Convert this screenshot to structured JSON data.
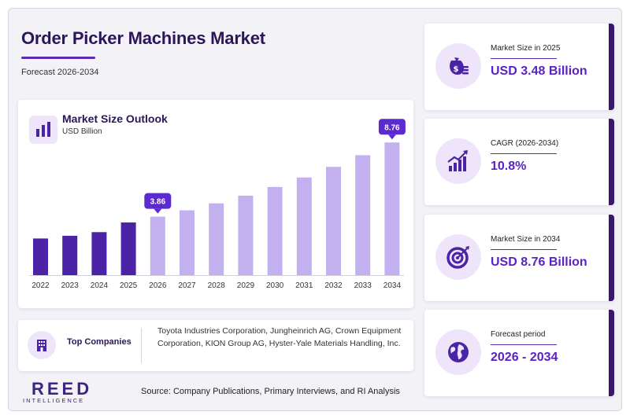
{
  "header": {
    "title": "Order Picker Machines Market",
    "subtitle": "Forecast 2026-2034"
  },
  "chart_data": {
    "type": "bar",
    "title": "Market Size Outlook",
    "unit_label": "USD Billion",
    "categories": [
      "2022",
      "2023",
      "2024",
      "2025",
      "2026",
      "2027",
      "2028",
      "2029",
      "2030",
      "2031",
      "2032",
      "2033",
      "2034"
    ],
    "values": [
      2.42,
      2.6,
      2.84,
      3.48,
      3.86,
      4.28,
      4.74,
      5.25,
      5.82,
      6.45,
      7.15,
      7.92,
      8.76
    ],
    "historical_color": "#4a23a6",
    "forecast_color": "#c2b1ee",
    "callout_color": "#5b2bcf",
    "labeled_points": [
      {
        "category": "2026",
        "label": "3.86"
      },
      {
        "category": "2034",
        "label": "8.76"
      }
    ],
    "ylim": [
      0,
      9.5
    ],
    "grid": false,
    "legend": "none"
  },
  "companies": {
    "label": "Top Companies",
    "list": "Toyota Industries Corporation, Jungheinrich AG, Crown Equipment Corporation, KION Group AG, Hyster-Yale Materials Handling, Inc."
  },
  "stats": [
    {
      "label": "Market Size in 2025",
      "value": "USD 3.48 Billion",
      "icon": "money-bag-icon"
    },
    {
      "label": "CAGR (2026-2034)",
      "value": "10.8%",
      "icon": "growth-chart-icon"
    },
    {
      "label": "Market Size in 2034",
      "value": "USD 8.76 Billion",
      "icon": "target-icon"
    },
    {
      "label": "Forecast period",
      "value": "2026 - 2034",
      "icon": "globe-icon"
    }
  ],
  "footer": {
    "logo_main": "REED",
    "logo_sub": "INTELLIGENCE",
    "source": "Source: Company Publications, Primary Interviews, and RI Analysis"
  },
  "colors": {
    "accent": "#5a22c5",
    "dark": "#2a1659",
    "icon_bg": "#efe5fb"
  }
}
